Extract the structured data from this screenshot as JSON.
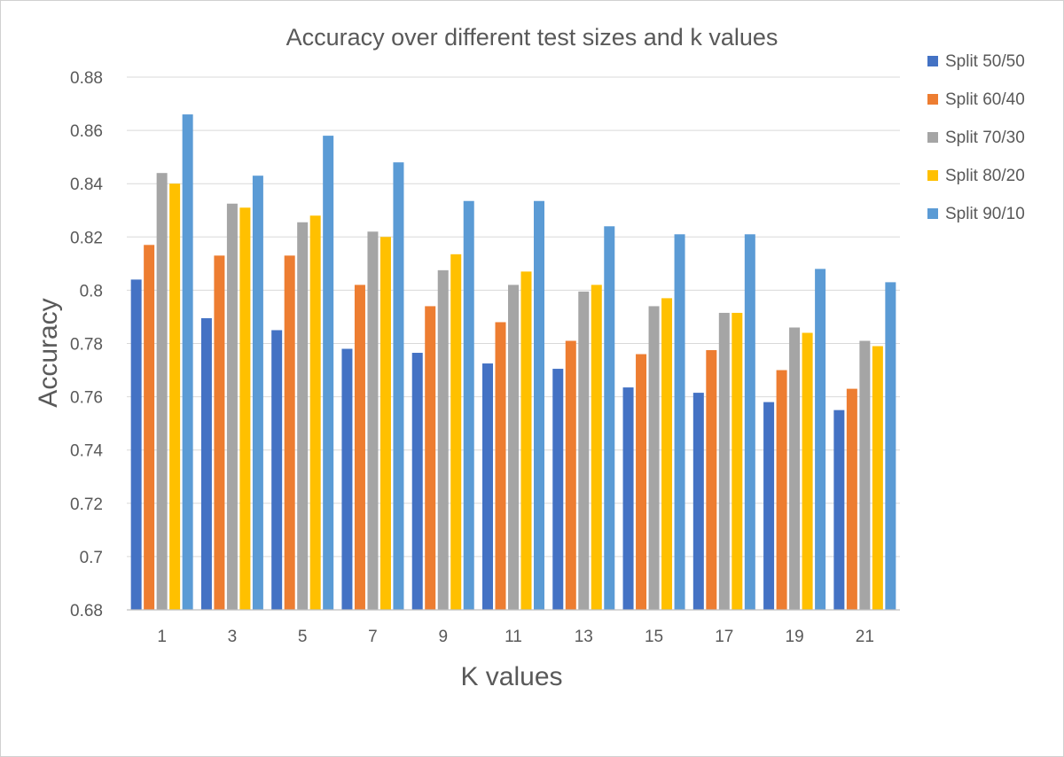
{
  "chart_data": {
    "type": "bar",
    "title": "Accuracy over different test sizes and k values",
    "xlabel": "K values",
    "ylabel": "Accuracy",
    "ylim": [
      0.68,
      0.88
    ],
    "yticks": [
      "0.68",
      "0.7",
      "0.72",
      "0.74",
      "0.76",
      "0.78",
      "0.8",
      "0.82",
      "0.84",
      "0.86",
      "0.88"
    ],
    "ytick_values": [
      0.68,
      0.7,
      0.72,
      0.74,
      0.76,
      0.78,
      0.8,
      0.82,
      0.84,
      0.86,
      0.88
    ],
    "categories": [
      "1",
      "3",
      "5",
      "7",
      "9",
      "11",
      "13",
      "15",
      "17",
      "19",
      "21"
    ],
    "grid": "horizontal",
    "legend_position": "right",
    "series": [
      {
        "name": "Split 50/50",
        "color": "#4472C4",
        "values": [
          0.804,
          0.7895,
          0.785,
          0.778,
          0.7765,
          0.7725,
          0.7705,
          0.7635,
          0.7615,
          0.758,
          0.755
        ]
      },
      {
        "name": "Split 60/40",
        "color": "#ED7D31",
        "values": [
          0.817,
          0.813,
          0.813,
          0.802,
          0.794,
          0.788,
          0.781,
          0.776,
          0.7775,
          0.77,
          0.763
        ]
      },
      {
        "name": "Split 70/30",
        "color": "#A5A5A5",
        "values": [
          0.844,
          0.8325,
          0.8255,
          0.822,
          0.8075,
          0.802,
          0.7995,
          0.794,
          0.7915,
          0.786,
          0.781
        ]
      },
      {
        "name": "Split 80/20",
        "color": "#FFC000",
        "values": [
          0.84,
          0.831,
          0.828,
          0.82,
          0.8135,
          0.807,
          0.802,
          0.797,
          0.7915,
          0.784,
          0.779
        ]
      },
      {
        "name": "Split 90/10",
        "color": "#5B9BD5",
        "values": [
          0.866,
          0.843,
          0.858,
          0.848,
          0.8335,
          0.8335,
          0.824,
          0.821,
          0.821,
          0.808,
          0.803
        ]
      }
    ]
  }
}
